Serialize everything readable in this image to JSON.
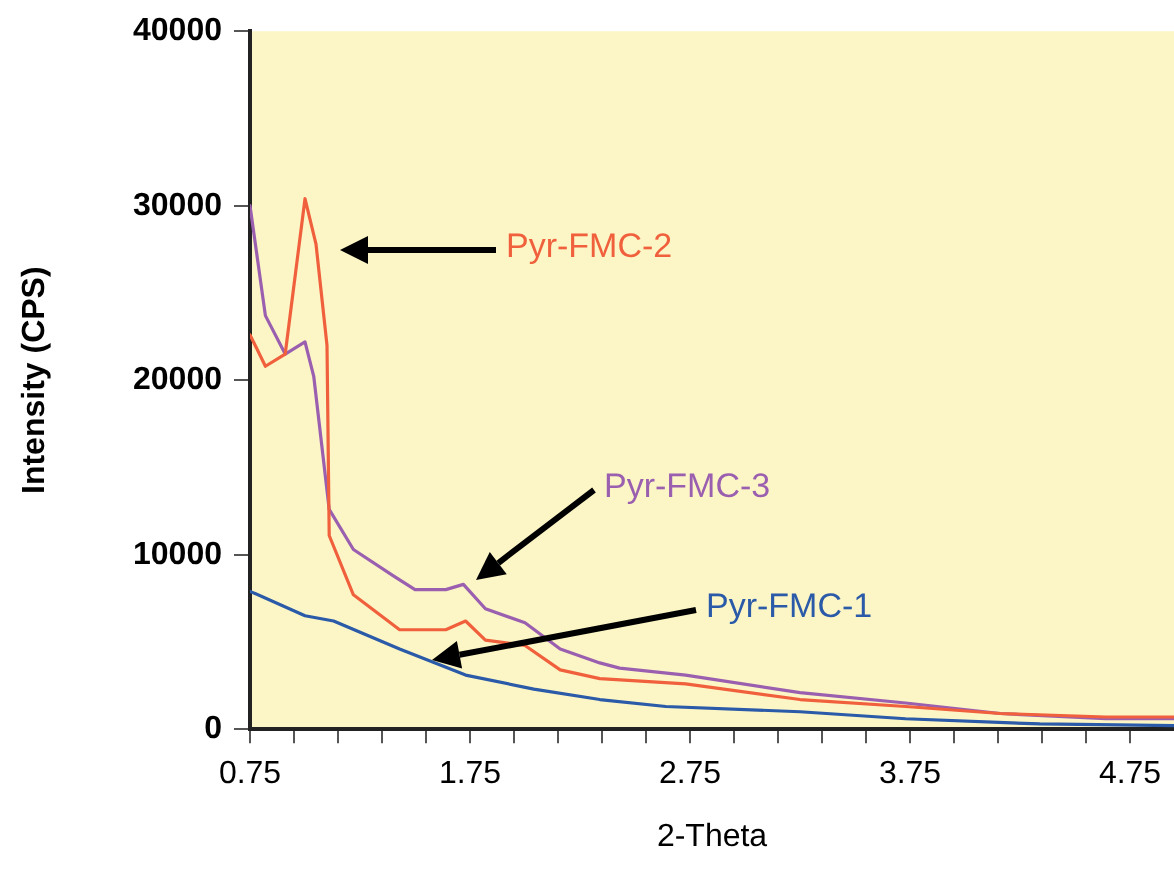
{
  "chart_data": {
    "type": "line",
    "xlabel": "2-Theta",
    "ylabel": "Intensity (CPS)",
    "xlim": [
      0.75,
      4.95
    ],
    "xticks": [
      0.75,
      {
        "value": 0.95,
        "label": null
      },
      {
        "value": 1.15,
        "label": null
      },
      {
        "value": 1.35,
        "label": null
      },
      {
        "value": 1.55,
        "label": null
      },
      1.75,
      {
        "value": 1.95,
        "label": null
      },
      {
        "value": 2.15,
        "label": null
      },
      {
        "value": 2.35,
        "label": null
      },
      {
        "value": 2.55,
        "label": null
      },
      2.75,
      {
        "value": 2.95,
        "label": null
      },
      {
        "value": 3.15,
        "label": null
      },
      {
        "value": 3.35,
        "label": null
      },
      {
        "value": 3.55,
        "label": null
      },
      3.75,
      {
        "value": 3.95,
        "label": null
      },
      {
        "value": 4.15,
        "label": null
      },
      {
        "value": 4.35,
        "label": null
      },
      {
        "value": 4.55,
        "label": null
      },
      4.75
    ],
    "ylim": [
      0,
      40000
    ],
    "yticks": [
      0,
      10000,
      20000,
      30000,
      40000
    ],
    "grid": false,
    "legend": false,
    "marker": "none",
    "line_style": "solid",
    "series": [
      {
        "name": "Pyr-FMC-2",
        "color": "#f0603c",
        "x": [
          0.75,
          0.82,
          0.91,
          1.0,
          1.05,
          1.1,
          1.11,
          1.22,
          1.43,
          1.64,
          1.73,
          1.82,
          2.0,
          2.16,
          2.34,
          2.73,
          3.25,
          3.73,
          4.16,
          4.64,
          4.95
        ],
        "values": [
          22600,
          20800,
          21500,
          30400,
          27800,
          22000,
          11100,
          7700,
          5700,
          5700,
          6200,
          5100,
          4800,
          3400,
          2900,
          2600,
          1700,
          1300,
          900,
          700,
          700
        ]
      },
      {
        "name": "Pyr-FMC-3",
        "color": "#9b5fb0",
        "x": [
          0.75,
          0.82,
          0.91,
          1.0,
          1.04,
          1.11,
          1.22,
          1.4,
          1.5,
          1.64,
          1.72,
          1.82,
          2.0,
          2.16,
          2.34,
          2.43,
          2.73,
          3.25,
          3.73,
          4.16,
          4.64,
          4.95
        ],
        "values": [
          30000,
          23700,
          21500,
          22200,
          20200,
          12600,
          10300,
          8800,
          8000,
          8000,
          8300,
          6900,
          6100,
          4600,
          3800,
          3500,
          3100,
          2100,
          1500,
          900,
          600,
          600
        ]
      },
      {
        "name": "Pyr-FMC-1",
        "color": "#2a5aa8",
        "x": [
          0.75,
          1.0,
          1.13,
          1.43,
          1.73,
          2.04,
          2.34,
          2.64,
          3.25,
          3.73,
          4.34,
          4.95
        ],
        "values": [
          7900,
          6500,
          6200,
          4600,
          3100,
          2300,
          1700,
          1300,
          1000,
          600,
          300,
          200
        ]
      }
    ]
  }
}
